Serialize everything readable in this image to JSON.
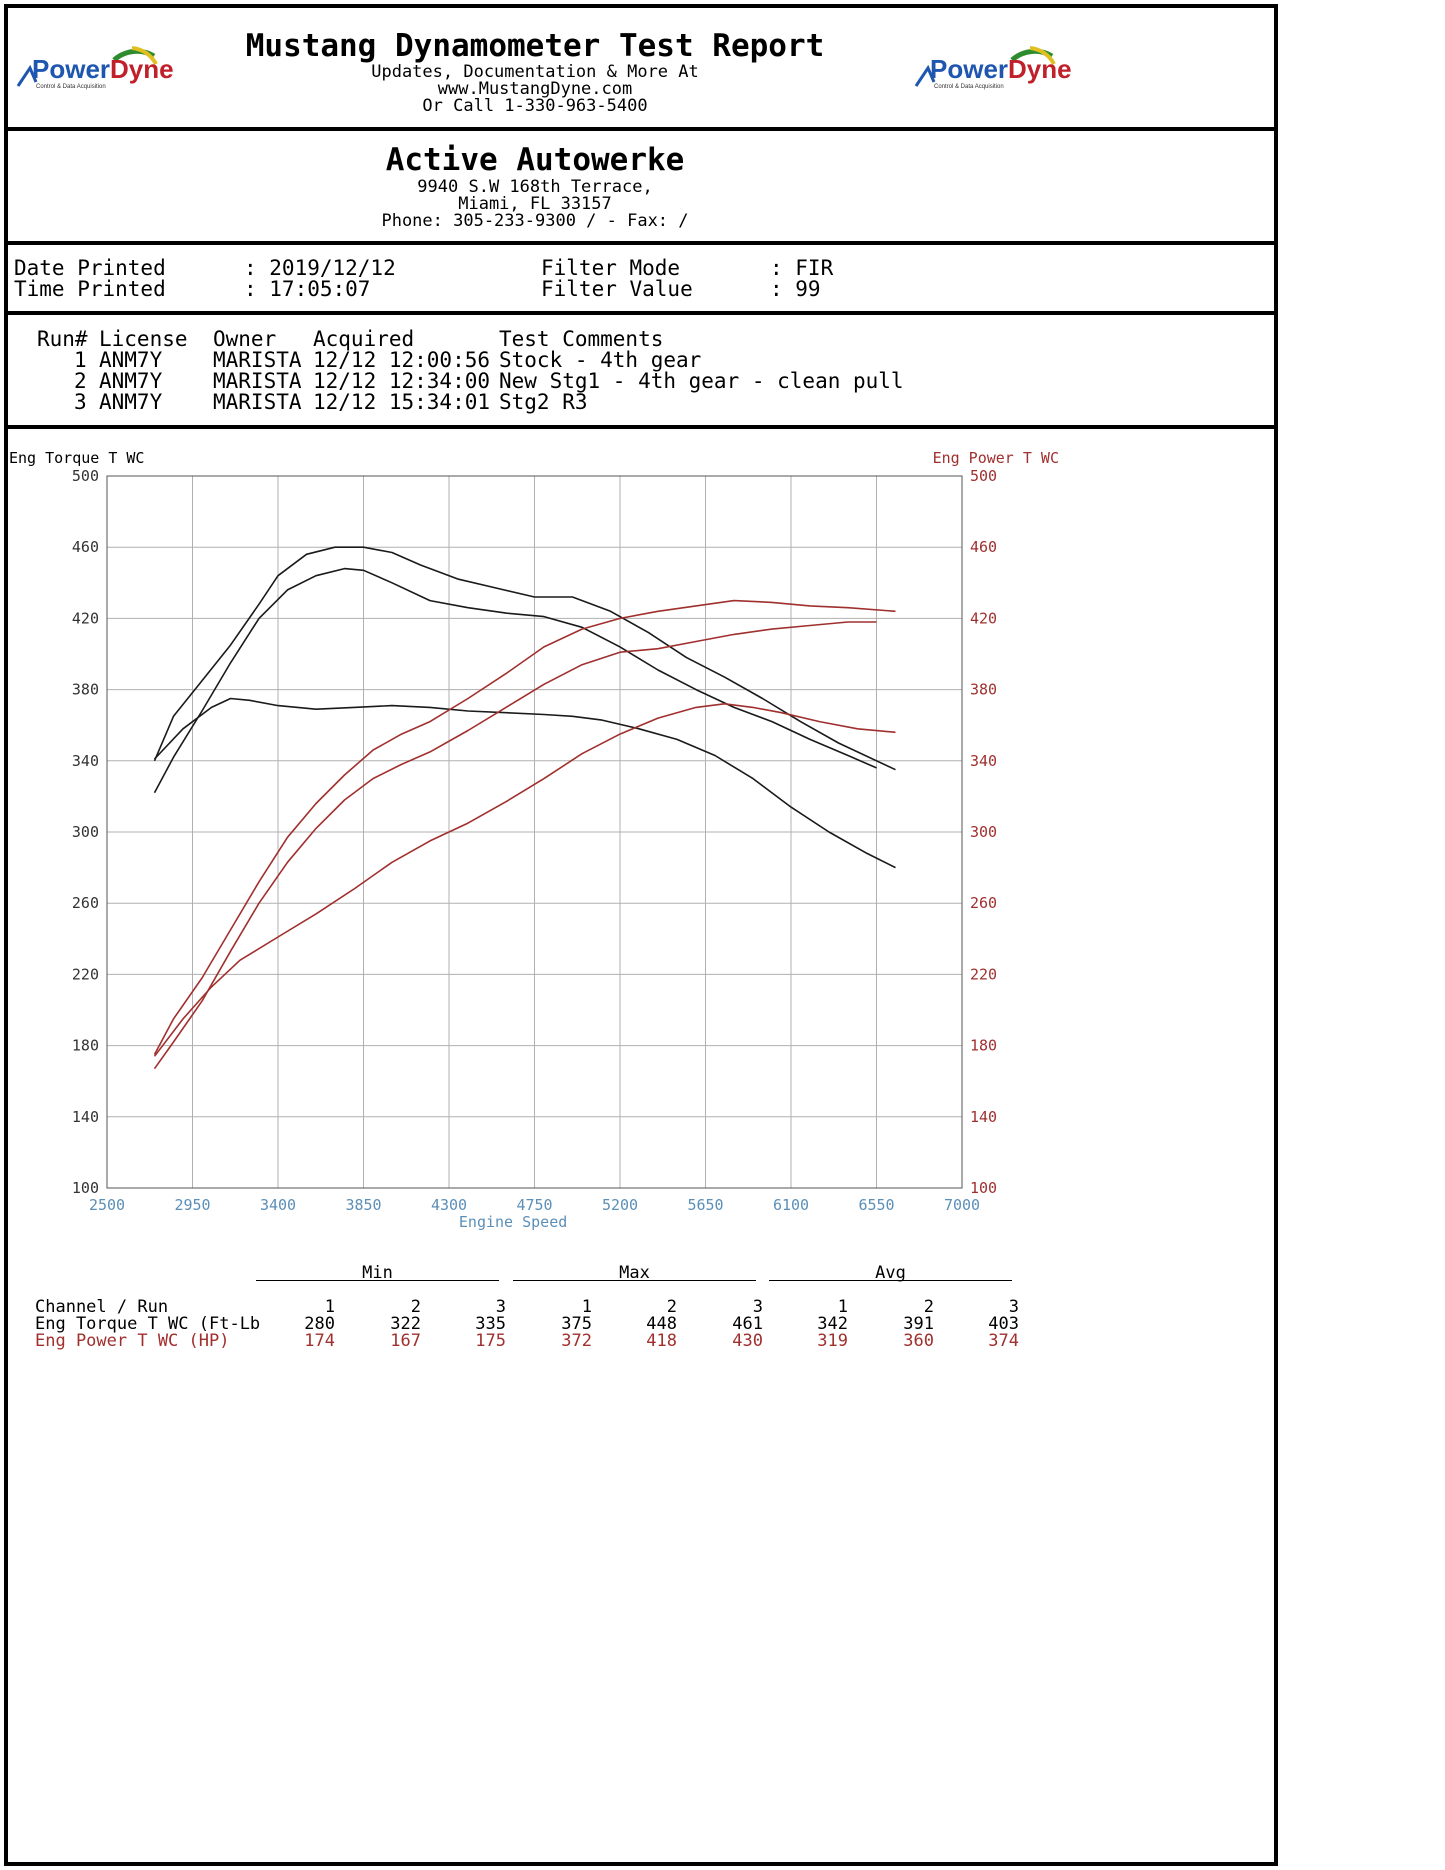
{
  "header": {
    "title": "Mustang Dynamometer Test Report",
    "line1": "Updates, Documentation & More At",
    "line2": "www.MustangDyne.com",
    "line3": "Or Call 1-330-963-5400",
    "logo_text_power": "Power",
    "logo_text_dyne": "Dyne",
    "logo_tagline": "Control & Data Acquisition"
  },
  "shop": {
    "name": "Active Autowerke",
    "address1": "9940 S.W 168th Terrace,",
    "address2": "Miami, FL  33157",
    "phone": "Phone: 305-233-9300 /  - Fax:  /"
  },
  "print_info": {
    "date_label": "Date Printed",
    "date_value": ": 2019/12/12",
    "time_label": "Time Printed",
    "time_value": ": 17:05:07",
    "filter_mode_label": "Filter Mode",
    "filter_mode_value": ": FIR",
    "filter_value_label": "Filter Value",
    "filter_value_value": ": 99"
  },
  "runs": {
    "headers": [
      "Run#",
      "License",
      "Owner",
      "Acquired",
      "Test Comments"
    ],
    "rows": [
      {
        "run": "1",
        "license": "ANM7Y",
        "owner": "MARISTA",
        "acquired": "12/12 12:00:56",
        "comment": "Stock - 4th gear"
      },
      {
        "run": "2",
        "license": "ANM7Y",
        "owner": "MARISTA",
        "acquired": "12/12 12:34:00",
        "comment": "New Stg1 - 4th gear - clean pull"
      },
      {
        "run": "3",
        "license": "ANM7Y",
        "owner": "MARISTA",
        "acquired": "12/12 15:34:01",
        "comment": "Stg2 R3"
      }
    ]
  },
  "colors": {
    "torque": "#1a1a1a",
    "power": "#a0302e",
    "axis_x": "#5b8fb8",
    "grid": "#b0b0b0"
  },
  "chart_data": {
    "type": "line",
    "ylabel_left": "Eng Torque T WC",
    "ylabel_right": "Eng Power T WC",
    "xlabel": "Engine Speed",
    "xlim": [
      2500,
      7000
    ],
    "ylim": [
      100,
      500
    ],
    "x_ticks": [
      2500,
      2950,
      3400,
      3850,
      4300,
      4750,
      5200,
      5650,
      6100,
      6550,
      7000
    ],
    "y_ticks": [
      100,
      140,
      180,
      220,
      260,
      300,
      340,
      380,
      420,
      460,
      500
    ],
    "grid": true,
    "series": [
      {
        "channel": "torque",
        "run": 1,
        "x": [
          2750,
          2900,
          3050,
          3150,
          3250,
          3400,
          3600,
          3800,
          4000,
          4200,
          4400,
          4600,
          4800,
          4950,
          5100,
          5300,
          5500,
          5700,
          5900,
          6100,
          6300,
          6500,
          6650
        ],
        "y": [
          341,
          358,
          370,
          375,
          374,
          371,
          369,
          370,
          371,
          370,
          368,
          367,
          366,
          365,
          363,
          358,
          352,
          343,
          330,
          314,
          300,
          288,
          280
        ]
      },
      {
        "channel": "torque",
        "run": 2,
        "x": [
          2750,
          2850,
          3000,
          3150,
          3300,
          3450,
          3600,
          3750,
          3850,
          4000,
          4200,
          4400,
          4600,
          4800,
          5000,
          5200,
          5400,
          5600,
          5800,
          6000,
          6200,
          6400,
          6550
        ],
        "y": [
          322,
          342,
          368,
          395,
          420,
          436,
          444,
          448,
          447,
          440,
          430,
          426,
          423,
          421,
          415,
          404,
          391,
          380,
          370,
          362,
          352,
          343,
          336
        ]
      },
      {
        "channel": "torque",
        "run": 3,
        "x": [
          2750,
          2850,
          3000,
          3150,
          3300,
          3400,
          3550,
          3700,
          3850,
          4000,
          4150,
          4350,
          4550,
          4750,
          4950,
          5150,
          5350,
          5550,
          5750,
          5950,
          6150,
          6350,
          6650
        ],
        "y": [
          340,
          365,
          385,
          405,
          428,
          444,
          456,
          460,
          460,
          457,
          450,
          442,
          437,
          432,
          432,
          424,
          412,
          398,
          387,
          375,
          362,
          350,
          335
        ]
      },
      {
        "channel": "power",
        "run": 1,
        "x": [
          2750,
          2900,
          3050,
          3200,
          3400,
          3600,
          3800,
          4000,
          4200,
          4400,
          4600,
          4800,
          5000,
          5200,
          5400,
          5600,
          5750,
          5900,
          6050,
          6250,
          6450,
          6650
        ],
        "y": [
          174,
          195,
          213,
          228,
          241,
          254,
          268,
          283,
          295,
          305,
          317,
          330,
          344,
          355,
          364,
          370,
          372,
          370,
          367,
          362,
          358,
          356
        ]
      },
      {
        "channel": "power",
        "run": 2,
        "x": [
          2750,
          2850,
          3000,
          3150,
          3300,
          3450,
          3600,
          3750,
          3900,
          4050,
          4200,
          4400,
          4600,
          4800,
          5000,
          5200,
          5400,
          5600,
          5800,
          6000,
          6200,
          6400,
          6550
        ],
        "y": [
          167,
          182,
          205,
          233,
          260,
          283,
          302,
          318,
          330,
          338,
          345,
          357,
          370,
          383,
          394,
          401,
          403,
          407,
          411,
          414,
          416,
          418,
          418
        ]
      },
      {
        "channel": "power",
        "run": 3,
        "x": [
          2750,
          2850,
          3000,
          3150,
          3300,
          3450,
          3600,
          3750,
          3900,
          4050,
          4200,
          4400,
          4600,
          4800,
          5000,
          5200,
          5400,
          5600,
          5800,
          6000,
          6200,
          6400,
          6650
        ],
        "y": [
          175,
          195,
          218,
          245,
          272,
          297,
          316,
          332,
          346,
          355,
          362,
          375,
          389,
          404,
          414,
          420,
          424,
          427,
          430,
          429,
          427,
          426,
          424
        ]
      }
    ]
  },
  "stats": {
    "group_min": "Min",
    "group_max": "Max",
    "group_avg": "Avg",
    "channel_run_label": "Channel / Run",
    "run_numbers": [
      "1",
      "2",
      "3",
      "1",
      "2",
      "3",
      "1",
      "2",
      "3"
    ],
    "torque_label": "Eng Torque T WC (Ft-Lb",
    "torque_values": [
      "280",
      "322",
      "335",
      "375",
      "448",
      "461",
      "342",
      "391",
      "403"
    ],
    "power_label": "Eng Power T WC (HP)",
    "power_values": [
      "174",
      "167",
      "175",
      "372",
      "418",
      "430",
      "319",
      "360",
      "374"
    ]
  }
}
